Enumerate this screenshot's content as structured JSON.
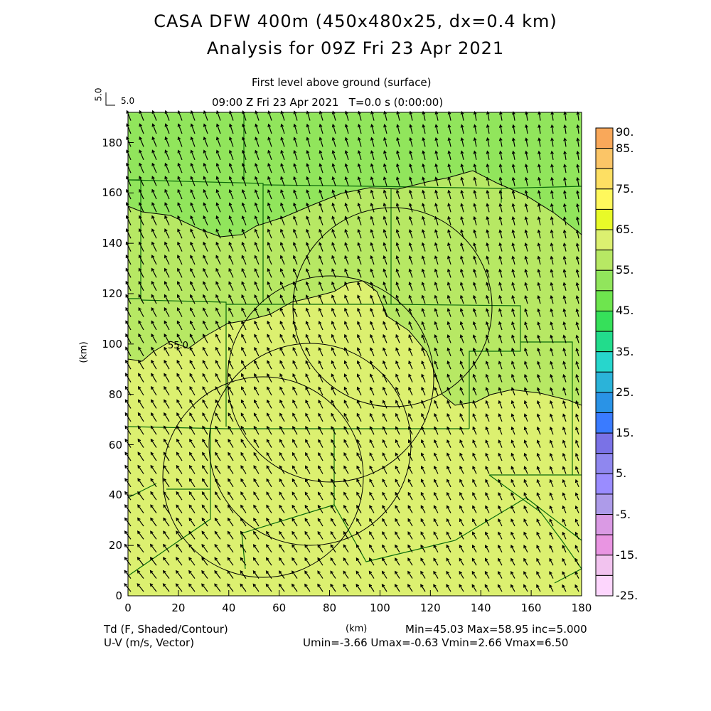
{
  "title": {
    "line1": "CASA DFW 400m (450x480x25, dx=0.4 km)",
    "line2": "Analysis for 09Z Fri 23 Apr 2021"
  },
  "subtitle": {
    "level": "First level above ground (surface)",
    "time": "09:00 Z Fri 23 Apr 2021   T=0.0 s (0:00:00)"
  },
  "vector_key": {
    "vertical": "5.0",
    "horizontal": "5.0"
  },
  "footer": {
    "left1": "Td (F, Shaded/Contour)",
    "left2": "U-V (m/s, Vector)",
    "unit": "(km)",
    "stats1": "Min=45.03 Max=58.95 inc=5.000",
    "stats2": "Umin=-3.66 Umax=-0.63 Vmin=2.66 Vmax=6.50"
  },
  "contour_label": "55.0",
  "chart_data": {
    "type": "heatmap",
    "title": "Td (F, Shaded/Contour)",
    "xlabel": "(km)",
    "ylabel": "(km)",
    "xlim": [
      0,
      180
    ],
    "ylim": [
      0,
      192
    ],
    "xticks": [
      "0",
      "20",
      "40",
      "60",
      "80",
      "100",
      "120",
      "140",
      "160",
      "180"
    ],
    "yticks": [
      "0",
      "20",
      "40",
      "60",
      "80",
      "100",
      "120",
      "140",
      "160",
      "180"
    ],
    "contour_levels": [
      50,
      55
    ],
    "field_min": 45.03,
    "field_max": 58.95,
    "vector_range": {
      "umin": -3.66,
      "umax": -0.63,
      "vmin": 2.66,
      "vmax": 6.5
    },
    "colorbar": {
      "labels": [
        "90.",
        "85.",
        "75.",
        "65.",
        "55.",
        "45.",
        "35.",
        "25.",
        "15.",
        "5.",
        "-5.",
        "-15.",
        "-25."
      ],
      "colors": [
        "#f9a85a",
        "#fbc567",
        "#fddf63",
        "#fff85c",
        "#e8fa28",
        "#dcf070",
        "#b7e864",
        "#91e55c",
        "#6ee54e",
        "#36e05a",
        "#22dc8c",
        "#27d6cc",
        "#2bb3d9",
        "#2a93e6",
        "#3a7bff",
        "#7a72e6",
        "#8f87ef",
        "#9a8cff",
        "#ad9be9",
        "#da9ae4",
        "#e995e2",
        "#f2c3ef",
        "#fdd6fd"
      ]
    }
  }
}
